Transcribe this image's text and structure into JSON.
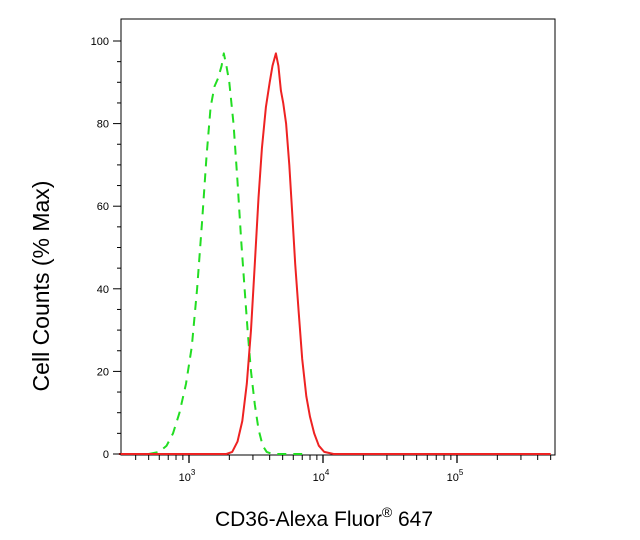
{
  "chart_data": {
    "type": "line",
    "xscale": "log",
    "xlim": [
      300,
      500000
    ],
    "ylim": [
      0,
      100
    ],
    "grid": false,
    "legend": "none",
    "xlabel": "CD36-Alexa Fluor",
    "xlabel_superscript": "®",
    "xlabel_suffix": " 647",
    "ylabel": "Cell Counts (% Max)",
    "yticks": [
      0,
      20,
      40,
      60,
      80,
      100
    ],
    "ytick_labels": [
      "0",
      "20",
      "40",
      "60",
      "80",
      "100"
    ],
    "xticks": [
      {
        "value": 1000,
        "base": "10",
        "exp": "3"
      },
      {
        "value": 10000,
        "base": "10",
        "exp": "4"
      },
      {
        "value": 100000,
        "base": "10",
        "exp": "5"
      }
    ],
    "series": [
      {
        "color": "#22dd22",
        "style": "dashed",
        "points": [
          [
            500,
            0
          ],
          [
            600,
            0.5
          ],
          [
            680,
            2
          ],
          [
            760,
            5
          ],
          [
            850,
            10
          ],
          [
            950,
            17
          ],
          [
            1050,
            26
          ],
          [
            1150,
            40
          ],
          [
            1250,
            56
          ],
          [
            1350,
            72
          ],
          [
            1450,
            84
          ],
          [
            1550,
            89
          ],
          [
            1650,
            91
          ],
          [
            1750,
            94
          ],
          [
            1820,
            97
          ],
          [
            1900,
            94
          ],
          [
            2000,
            90
          ],
          [
            2150,
            80
          ],
          [
            2300,
            66
          ],
          [
            2450,
            52
          ],
          [
            2600,
            40
          ],
          [
            2750,
            29
          ],
          [
            2900,
            20
          ],
          [
            3100,
            12
          ],
          [
            3300,
            6
          ],
          [
            3550,
            2
          ],
          [
            3800,
            0.5
          ],
          [
            4200,
            0
          ],
          [
            7000,
            0
          ]
        ]
      },
      {
        "color": "#ee2222",
        "style": "solid",
        "points": [
          [
            300,
            0
          ],
          [
            1900,
            0
          ],
          [
            2100,
            0.5
          ],
          [
            2300,
            3
          ],
          [
            2500,
            8
          ],
          [
            2700,
            17
          ],
          [
            2900,
            30
          ],
          [
            3100,
            46
          ],
          [
            3300,
            62
          ],
          [
            3500,
            74
          ],
          [
            3750,
            84
          ],
          [
            4000,
            90
          ],
          [
            4200,
            94
          ],
          [
            4450,
            97
          ],
          [
            4650,
            94
          ],
          [
            4850,
            88
          ],
          [
            5050,
            85
          ],
          [
            5300,
            80
          ],
          [
            5600,
            70
          ],
          [
            5900,
            58
          ],
          [
            6200,
            46
          ],
          [
            6600,
            34
          ],
          [
            7000,
            23
          ],
          [
            7500,
            14
          ],
          [
            8000,
            9
          ],
          [
            8600,
            5
          ],
          [
            9300,
            2
          ],
          [
            10200,
            0.5
          ],
          [
            12000,
            0
          ],
          [
            500000,
            0
          ]
        ]
      }
    ]
  }
}
